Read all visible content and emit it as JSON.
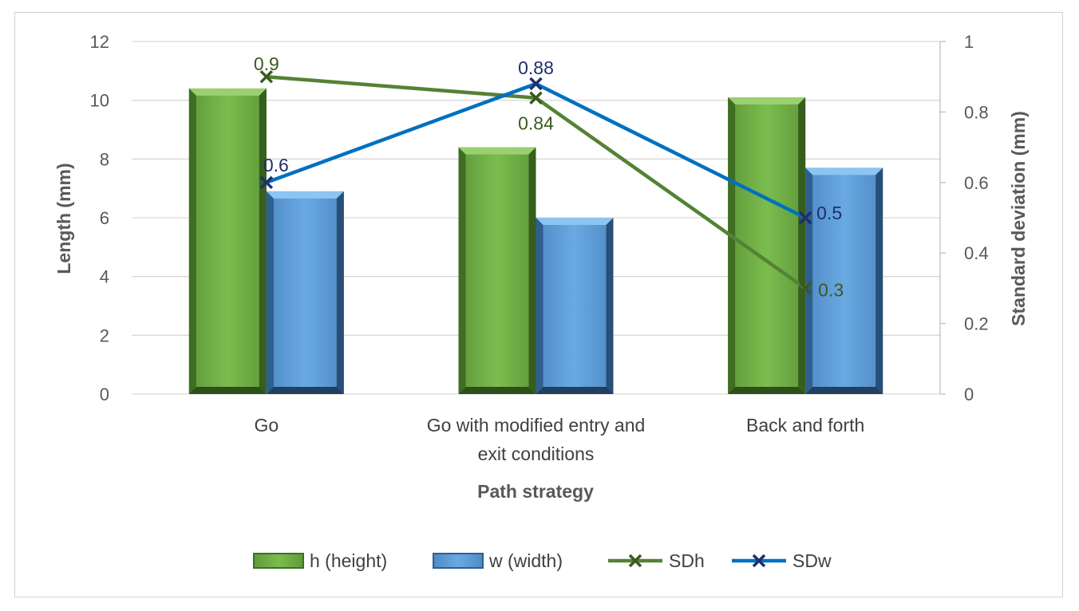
{
  "chart_data": {
    "type": "bar",
    "title": "",
    "xlabel": "Path strategy",
    "ylabel": "Length (mm)",
    "y2label": "Standard deviation (mm)",
    "ylim": [
      0,
      12
    ],
    "y2lim": [
      0,
      1
    ],
    "yticks": [
      "0",
      "2",
      "4",
      "6",
      "8",
      "10",
      "12"
    ],
    "y2ticks": [
      "0",
      "0.2",
      "0.4",
      "0.6",
      "0.8",
      "1"
    ],
    "categories": [
      [
        "Go"
      ],
      [
        "Go with modified entry and",
        "exit conditions"
      ],
      [
        "Back and forth"
      ]
    ],
    "series": [
      {
        "name": "h (height)",
        "kind": "bar",
        "axis": "left",
        "color": "#70ad47",
        "values": [
          10.4,
          8.4,
          10.1
        ]
      },
      {
        "name": "w (width)",
        "kind": "bar",
        "axis": "left",
        "color": "#5b9bd5",
        "values": [
          6.9,
          6.0,
          7.7
        ]
      },
      {
        "name": "SDh",
        "kind": "line",
        "axis": "right",
        "color": "#548235",
        "markerColor": "#3a5a1e",
        "labelColor": "#3a5a1e",
        "values": [
          0.9,
          0.84,
          0.3
        ],
        "labels": [
          "0.9",
          "0.84",
          "0.3"
        ]
      },
      {
        "name": "SDw",
        "kind": "line",
        "axis": "right",
        "color": "#0070c0",
        "markerColor": "#1f2f6b",
        "labelColor": "#1f2f6b",
        "values": [
          0.6,
          0.88,
          0.5
        ],
        "labels": [
          "0.6",
          "0.88",
          "0.5"
        ]
      }
    ],
    "legend_position": "bottom",
    "gridlines": true
  }
}
